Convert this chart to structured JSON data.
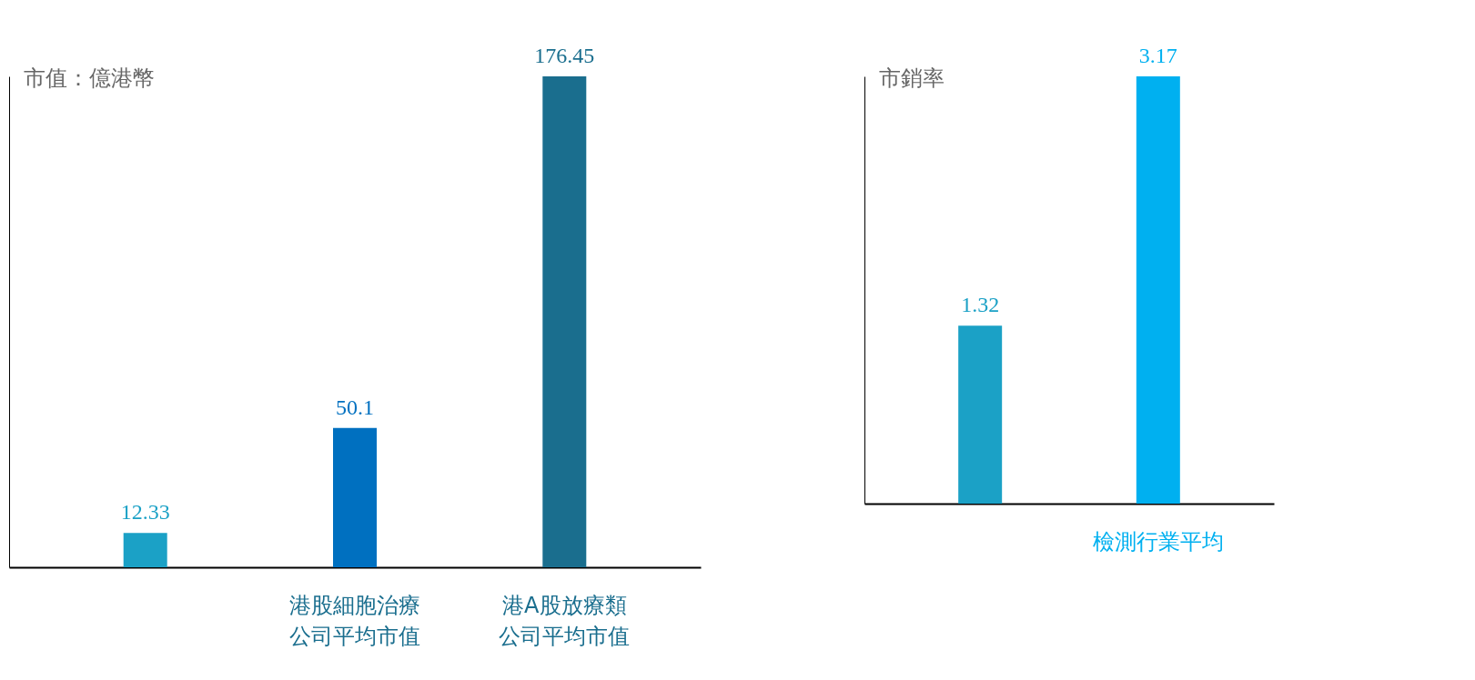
{
  "chart_data": [
    {
      "type": "bar",
      "ylabel": "市值：億港幣",
      "categories": [
        null,
        "港股細胞治療公司平均市值",
        "港A股放療類公司平均市值"
      ],
      "values": [
        12.33,
        50.1,
        176.45
      ],
      "colors": [
        "#1ba1c6",
        "#0070c0",
        "#1a6e8e"
      ],
      "data_labels": true
    },
    {
      "type": "bar",
      "ylabel": "市銷率",
      "categories": [
        null,
        "檢測行業平均"
      ],
      "values": [
        1.32,
        3.17
      ],
      "colors": [
        "#1ba1c6",
        "#00b0f0"
      ],
      "data_labels": true
    }
  ]
}
